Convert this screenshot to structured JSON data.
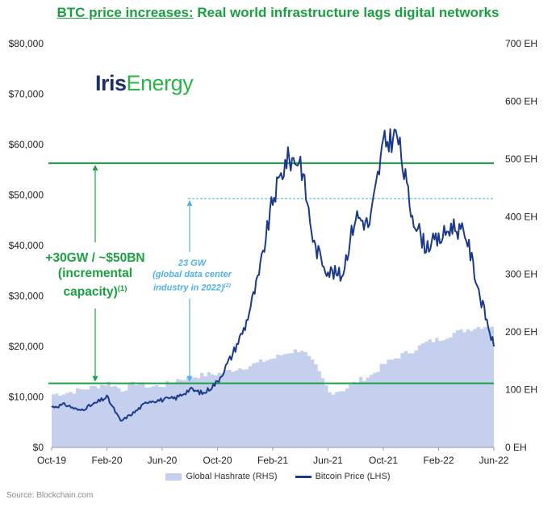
{
  "title": {
    "prefix": "BTC price increases:",
    "rest": " Real world infrastructure lags digital networks"
  },
  "logo": {
    "part1": "Iris",
    "part2": "Energy"
  },
  "annotations": {
    "green_main": "+30GW / ~$50BN",
    "green_line2": "(incremental",
    "green_line3": "capacity)",
    "green_sup": "(1)",
    "blue_line1": "23 GW",
    "blue_line2": "(global data center",
    "blue_line3": "industry in 2022)",
    "blue_sup": "(2)"
  },
  "legend": {
    "hashrate": "Global Hashrate (RHS)",
    "price": "Bitcoin Price (LHS)"
  },
  "source": "Source: Blockchain.com",
  "colors": {
    "green": "#1aa041",
    "navy": "#1c3a8a",
    "area": "#c5d0ef",
    "light_blue": "#4fb2e3"
  },
  "chart_data": {
    "type": "line",
    "x_tick_labels": [
      "Oct-19",
      "Feb-20",
      "Jun-20",
      "Oct-20",
      "Feb-21",
      "Jun-21",
      "Oct-21",
      "Feb-22",
      "Jun-22"
    ],
    "y_left_ticks": [
      "$0",
      "$10,000",
      "$20,000",
      "$30,000",
      "$40,000",
      "$50,000",
      "$60,000",
      "$70,000",
      "$80,000"
    ],
    "y_right_ticks": [
      "0 EH",
      "100 EH",
      "200 EH",
      "300 EH",
      "400 EH",
      "500 EH",
      "600 EH",
      "700 EH"
    ],
    "y_left_range": [
      0,
      80000
    ],
    "y_right_range": [
      0,
      700
    ],
    "x_range": [
      "2019-10",
      "2022-06"
    ],
    "series": [
      {
        "name": "Bitcoin Price (LHS)",
        "axis": "left",
        "x": [
          "2019-10",
          "2019-11",
          "2019-12",
          "2020-01",
          "2020-02",
          "2020-03",
          "2020-04",
          "2020-05",
          "2020-06",
          "2020-07",
          "2020-08",
          "2020-09",
          "2020-10",
          "2020-11",
          "2020-12",
          "2021-01",
          "2021-02",
          "2021-03",
          "2021-04",
          "2021-05",
          "2021-06",
          "2021-07",
          "2021-08",
          "2021-09",
          "2021-10",
          "2021-11",
          "2021-12",
          "2022-01",
          "2022-02",
          "2022-03",
          "2022-04",
          "2022-05",
          "2022-06"
        ],
        "values": [
          8000,
          8500,
          7300,
          8500,
          10000,
          5200,
          7000,
          9200,
          9400,
          9800,
          11500,
          10700,
          13000,
          18000,
          24000,
          34000,
          49000,
          57000,
          57000,
          40000,
          35000,
          34000,
          46000,
          44000,
          60000,
          62000,
          47000,
          40000,
          41000,
          44000,
          42000,
          30000,
          20000
        ]
      },
      {
        "name": "Global Hashrate (RHS)",
        "axis": "right",
        "x": [
          "2019-10",
          "2019-11",
          "2019-12",
          "2020-01",
          "2020-02",
          "2020-03",
          "2020-04",
          "2020-05",
          "2020-06",
          "2020-07",
          "2020-08",
          "2020-09",
          "2020-10",
          "2020-11",
          "2020-12",
          "2021-01",
          "2021-02",
          "2021-03",
          "2021-04",
          "2021-05",
          "2021-06",
          "2021-07",
          "2021-08",
          "2021-09",
          "2021-10",
          "2021-11",
          "2021-12",
          "2022-01",
          "2022-02",
          "2022-03",
          "2022-04",
          "2022-05",
          "2022-06"
        ],
        "values": [
          92,
          95,
          100,
          105,
          112,
          100,
          112,
          105,
          108,
          118,
          122,
          126,
          128,
          135,
          140,
          148,
          155,
          165,
          170,
          140,
          95,
          100,
          115,
          125,
          145,
          158,
          168,
          182,
          188,
          198,
          205,
          210,
          212
        ]
      }
    ],
    "reference_lines": [
      {
        "axis": "left",
        "value": 56300,
        "style": "solid"
      },
      {
        "axis": "left",
        "value": 12700,
        "style": "solid"
      },
      {
        "axis": "left",
        "value": 49300,
        "style": "dashed"
      }
    ]
  }
}
